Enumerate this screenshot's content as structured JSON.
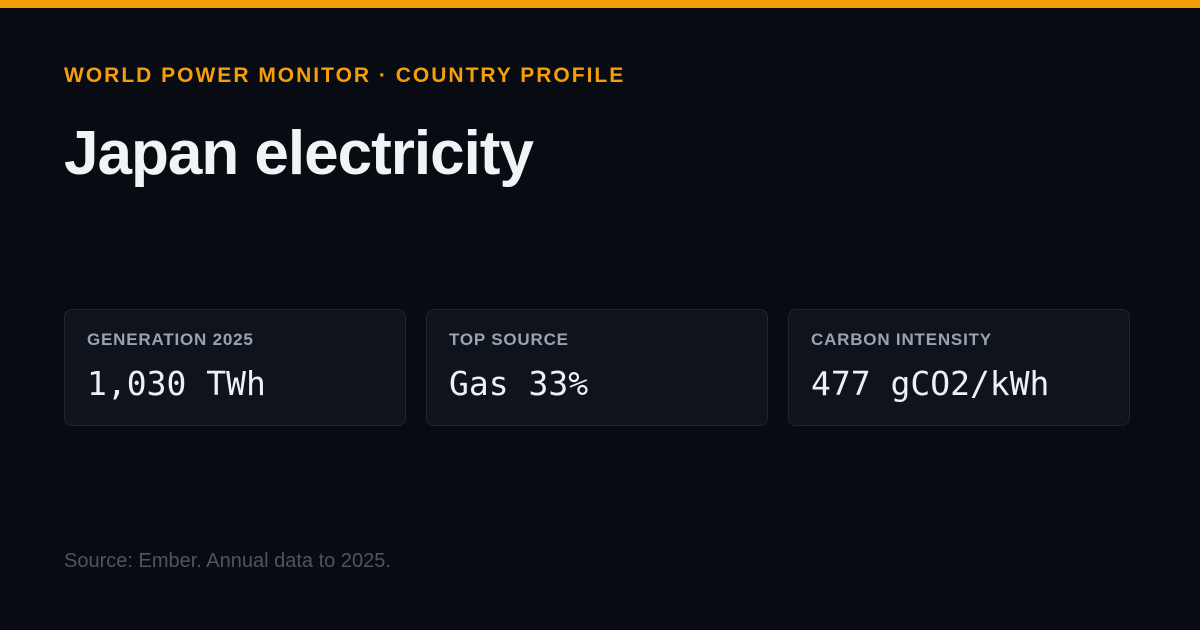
{
  "header": {
    "eyebrow": "WORLD POWER MONITOR · COUNTRY PROFILE",
    "title": "Japan electricity"
  },
  "cards": [
    {
      "label": "GENERATION 2025",
      "value": "1,030 TWh"
    },
    {
      "label": "TOP SOURCE",
      "value": "Gas 33%"
    },
    {
      "label": "CARBON INTENSITY",
      "value": "477 gCO2/kWh"
    }
  ],
  "footer": {
    "source": "Source: Ember. Annual data to 2025."
  }
}
